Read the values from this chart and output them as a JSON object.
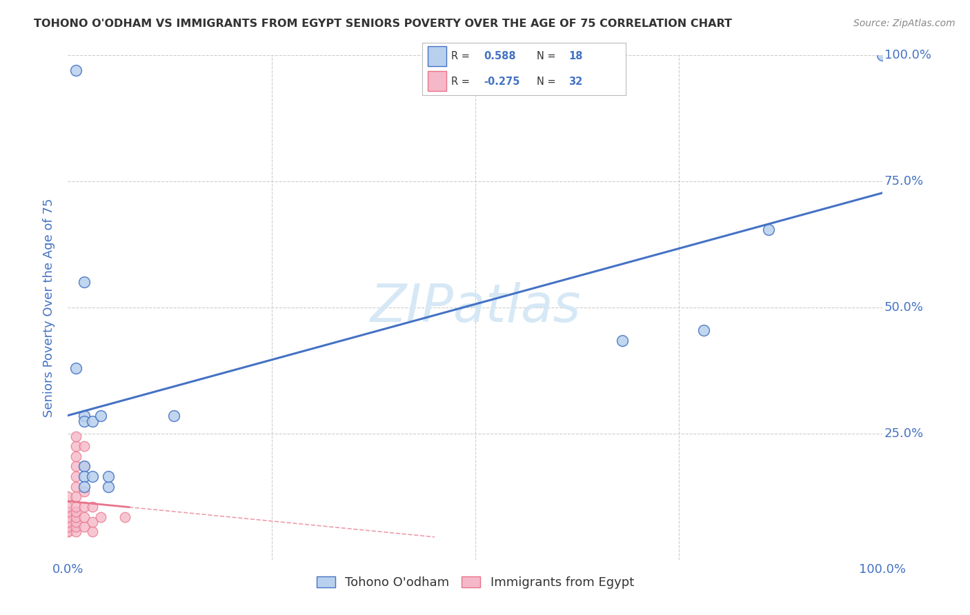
{
  "title": "TOHONO O'ODHAM VS IMMIGRANTS FROM EGYPT SENIORS POVERTY OVER THE AGE OF 75 CORRELATION CHART",
  "source": "Source: ZipAtlas.com",
  "ylabel_label": "Seniors Poverty Over the Age of 75",
  "xlim": [
    0,
    1.0
  ],
  "ylim": [
    0,
    1.0
  ],
  "blue_R": 0.588,
  "blue_N": 18,
  "pink_R": -0.275,
  "pink_N": 32,
  "legend_label_blue": "Tohono O'odham",
  "legend_label_pink": "Immigrants from Egypt",
  "watermark": "ZIPatlas",
  "blue_scatter": [
    [
      0.01,
      0.97
    ],
    [
      0.01,
      0.38
    ],
    [
      0.02,
      0.55
    ],
    [
      0.02,
      0.285
    ],
    [
      0.02,
      0.275
    ],
    [
      0.02,
      0.185
    ],
    [
      0.02,
      0.165
    ],
    [
      0.02,
      0.145
    ],
    [
      0.03,
      0.275
    ],
    [
      0.03,
      0.165
    ],
    [
      0.04,
      0.285
    ],
    [
      0.05,
      0.145
    ],
    [
      0.05,
      0.165
    ],
    [
      0.13,
      0.285
    ],
    [
      0.68,
      0.435
    ],
    [
      0.78,
      0.455
    ],
    [
      0.86,
      0.655
    ],
    [
      1.0,
      1.0
    ]
  ],
  "pink_scatter": [
    [
      0.0,
      0.055
    ],
    [
      0.0,
      0.055
    ],
    [
      0.0,
      0.065
    ],
    [
      0.0,
      0.075
    ],
    [
      0.0,
      0.085
    ],
    [
      0.0,
      0.095
    ],
    [
      0.0,
      0.105
    ],
    [
      0.0,
      0.125
    ],
    [
      0.01,
      0.055
    ],
    [
      0.01,
      0.065
    ],
    [
      0.01,
      0.075
    ],
    [
      0.01,
      0.085
    ],
    [
      0.01,
      0.095
    ],
    [
      0.01,
      0.105
    ],
    [
      0.01,
      0.125
    ],
    [
      0.01,
      0.145
    ],
    [
      0.01,
      0.165
    ],
    [
      0.01,
      0.185
    ],
    [
      0.01,
      0.205
    ],
    [
      0.01,
      0.225
    ],
    [
      0.01,
      0.245
    ],
    [
      0.02,
      0.065
    ],
    [
      0.02,
      0.085
    ],
    [
      0.02,
      0.105
    ],
    [
      0.02,
      0.135
    ],
    [
      0.02,
      0.185
    ],
    [
      0.02,
      0.225
    ],
    [
      0.03,
      0.055
    ],
    [
      0.03,
      0.075
    ],
    [
      0.03,
      0.105
    ],
    [
      0.04,
      0.085
    ],
    [
      0.07,
      0.085
    ]
  ],
  "blue_line_color": "#4472C4",
  "pink_line_color": "#E8748A",
  "blue_scatter_color": "#b8d0ed",
  "pink_scatter_color": "#f5b8c8",
  "grid_color": "#cccccc",
  "title_color": "#333333",
  "axis_label_color": "#4472C4",
  "tick_color": "#4472C4",
  "watermark_color": "#d6e8f5",
  "background_color": "#ffffff",
  "legend_text_color": "#333333",
  "legend_value_color": "#4472C4"
}
